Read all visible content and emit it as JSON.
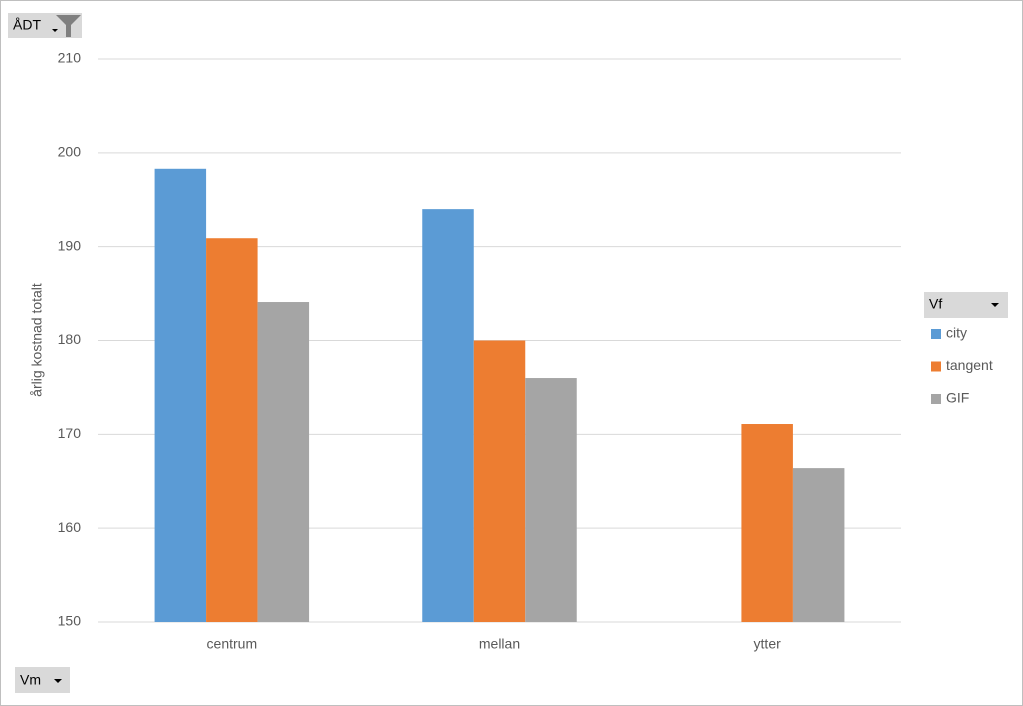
{
  "chart_data": {
    "type": "bar",
    "report_filter": "ÅDT",
    "legend_title": "Vf",
    "axis_field": "Vm",
    "ylabel": "årlig kostnad totalt",
    "categories": [
      "centrum",
      "mellan",
      "ytter"
    ],
    "series": [
      {
        "name": "city",
        "color": "#5b9bd5",
        "values": [
          198.3,
          194.0,
          null
        ]
      },
      {
        "name": "tangent",
        "color": "#ed7d31",
        "values": [
          190.9,
          180.0,
          171.1
        ]
      },
      {
        "name": "GIF",
        "color": "#a5a5a5",
        "values": [
          184.1,
          176.0,
          166.4
        ]
      }
    ],
    "ylim": [
      150,
      210
    ],
    "yticks": [
      150,
      160,
      170,
      180,
      190,
      200,
      210
    ],
    "grid": true,
    "legend": "right"
  }
}
